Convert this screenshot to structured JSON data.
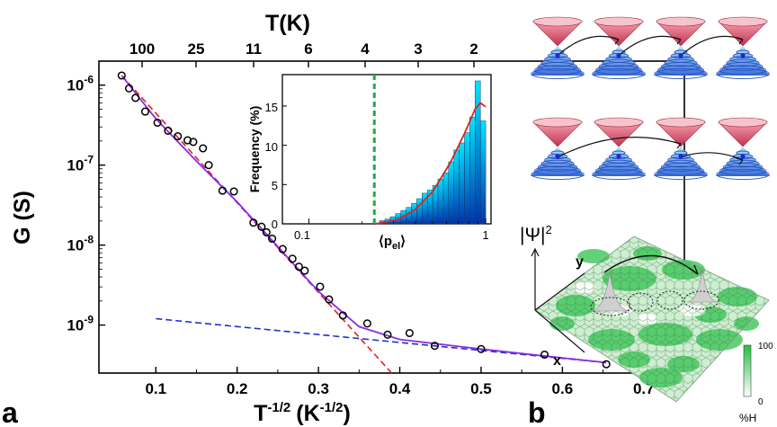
{
  "panel_labels": {
    "a": "a",
    "b": "b"
  },
  "chart_data": [
    {
      "type": "scatter",
      "xlabel": "T",
      "xlabel_sup": "-1/2",
      "xlabel_unit": "(K",
      "xlabel_unit_sup": "-1/2",
      "xlabel_close": ")",
      "ylabel": "G (S)",
      "top_axis_label": "T(K)",
      "log_y": true,
      "xlim": [
        0.03,
        0.75
      ],
      "ylim_log10": [
        -9.6,
        -5.7
      ],
      "x_ticks": [
        "0.1",
        "0.2",
        "0.3",
        "0.4",
        "0.5",
        "0.6",
        "0.7"
      ],
      "y_ticks": [
        {
          "base": "10",
          "exp": "-6",
          "value": -6
        },
        {
          "base": "10",
          "exp": "-7",
          "value": -7
        },
        {
          "base": "10",
          "exp": "-8",
          "value": -8
        },
        {
          "base": "10",
          "exp": "-9",
          "value": -9
        }
      ],
      "top_ticks": [
        "100",
        "25",
        "11",
        "6",
        "4",
        "3",
        "2"
      ],
      "points_log10G": [
        [
          0.058,
          -5.88
        ],
        [
          0.067,
          -6.04
        ],
        [
          0.075,
          -6.16
        ],
        [
          0.087,
          -6.33
        ],
        [
          0.102,
          -6.47
        ],
        [
          0.115,
          -6.57
        ],
        [
          0.127,
          -6.64
        ],
        [
          0.139,
          -6.69
        ],
        [
          0.146,
          -6.71
        ],
        [
          0.158,
          -6.79
        ],
        [
          0.165,
          -7.0
        ],
        [
          0.182,
          -7.32
        ],
        [
          0.196,
          -7.33
        ],
        [
          0.22,
          -7.72
        ],
        [
          0.23,
          -7.77
        ],
        [
          0.236,
          -7.84
        ],
        [
          0.243,
          -7.92
        ],
        [
          0.256,
          -8.05
        ],
        [
          0.268,
          -8.17
        ],
        [
          0.276,
          -8.27
        ],
        [
          0.283,
          -8.32
        ],
        [
          0.302,
          -8.52
        ],
        [
          0.313,
          -8.68
        ],
        [
          0.33,
          -8.88
        ],
        [
          0.36,
          -8.98
        ],
        [
          0.385,
          -9.12
        ],
        [
          0.412,
          -9.1
        ],
        [
          0.443,
          -9.26
        ],
        [
          0.5,
          -9.3
        ],
        [
          0.578,
          -9.37
        ],
        [
          0.654,
          -9.49
        ]
      ],
      "fit_line_log10G": [
        [
          0.058,
          -5.88
        ],
        [
          0.1,
          -6.42
        ],
        [
          0.15,
          -6.95
        ],
        [
          0.2,
          -7.46
        ],
        [
          0.25,
          -8.02
        ],
        [
          0.3,
          -8.58
        ],
        [
          0.35,
          -9.02
        ],
        [
          0.4,
          -9.18
        ],
        [
          0.5,
          -9.3
        ],
        [
          0.6,
          -9.41
        ],
        [
          0.654,
          -9.47
        ]
      ],
      "dashed_red_log10G": [
        [
          0.058,
          -5.88
        ],
        [
          0.39,
          -9.6
        ]
      ],
      "dashed_blue_log10G": [
        [
          0.1,
          -8.92
        ],
        [
          0.654,
          -9.47
        ]
      ],
      "colors": {
        "points": "#000000",
        "fit": "#8a2be2",
        "dashed_red": "#e02020",
        "dashed_blue": "#1a33cc"
      }
    },
    {
      "type": "bar",
      "inset": true,
      "xlabel": "⟨p",
      "xlabel_sub": "el",
      "xlabel_close": "⟩",
      "ylabel": "Frequency (%)",
      "log_x": true,
      "x_ticks": [
        "0.1",
        "1"
      ],
      "y_ticks": [
        "0",
        "5",
        "10",
        "15"
      ],
      "ylim": [
        0,
        19
      ],
      "bins_log10": [
        [
          -0.62,
          -0.6,
          0.1
        ],
        [
          -0.6,
          -0.57,
          0.4
        ],
        [
          -0.57,
          -0.54,
          0.6
        ],
        [
          -0.54,
          -0.51,
          0.9
        ],
        [
          -0.51,
          -0.48,
          1.3
        ],
        [
          -0.48,
          -0.45,
          1.7
        ],
        [
          -0.45,
          -0.42,
          2.1
        ],
        [
          -0.42,
          -0.39,
          2.6
        ],
        [
          -0.39,
          -0.36,
          3.2
        ],
        [
          -0.36,
          -0.33,
          3.9
        ],
        [
          -0.33,
          -0.3,
          4.3
        ],
        [
          -0.3,
          -0.27,
          4.9
        ],
        [
          -0.27,
          -0.24,
          5.7
        ],
        [
          -0.24,
          -0.21,
          6.5
        ],
        [
          -0.21,
          -0.18,
          7.9
        ],
        [
          -0.18,
          -0.15,
          9.4
        ],
        [
          -0.15,
          -0.12,
          10.3
        ],
        [
          -0.12,
          -0.09,
          11.6
        ],
        [
          -0.09,
          -0.06,
          13.6
        ],
        [
          -0.06,
          -0.03,
          18.2
        ],
        [
          -0.03,
          0.0,
          13.1
        ]
      ],
      "fit_curve": [
        [
          -0.62,
          0.0
        ],
        [
          -0.5,
          0.5
        ],
        [
          -0.4,
          1.8
        ],
        [
          -0.3,
          4.1
        ],
        [
          -0.2,
          7.8
        ],
        [
          -0.12,
          11.5
        ],
        [
          -0.06,
          14.6
        ],
        [
          -0.03,
          15.4
        ],
        [
          0.0,
          14.9
        ]
      ],
      "threshold_log10": -0.63,
      "colors": {
        "bars_top": "#00e5ff",
        "bars_bottom": "#0033aa",
        "fit": "#e02020",
        "threshold": "#22aa44"
      }
    }
  ],
  "panel_b": {
    "psi_label": "|Ψ|",
    "psi_sup": "2",
    "x_axis": "x",
    "y_axis": "y",
    "colorbar_max": "100",
    "colorbar_min": "0",
    "colorbar_unit": "%H",
    "colors": {
      "cone_top": "#d85060",
      "cone_bottom": "#3a5ad8",
      "lattice": "#1fbf3f"
    }
  }
}
